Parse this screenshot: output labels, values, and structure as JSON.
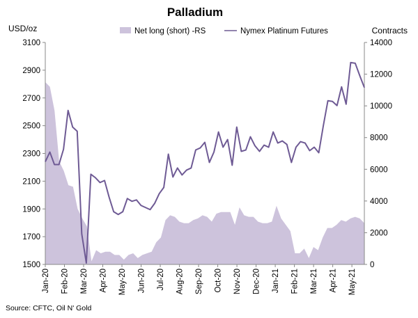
{
  "chart_data": {
    "type": "line",
    "title": "Palladium",
    "left_axis_unit": "USD/oz",
    "right_axis_unit": "Contracts",
    "source": "Source: CFTC, Oil N' Gold",
    "left_ylim": [
      1500,
      3100
    ],
    "left_yticks": [
      1500,
      1700,
      1900,
      2100,
      2300,
      2500,
      2700,
      2900,
      3100
    ],
    "right_ylim": [
      0,
      14000
    ],
    "right_yticks": [
      0,
      2000,
      4000,
      6000,
      8000,
      10000,
      12000,
      14000
    ],
    "x_tick_labels": [
      "Jan-20",
      "Feb-20",
      "Mar-20",
      "Apr-20",
      "May-20",
      "Jun-20",
      "Jul-20",
      "Aug-20",
      "Sep-20",
      "Oct-20",
      "Nov-20",
      "Dec-20",
      "Jan-21",
      "Feb-21",
      "Mar-21",
      "Apr-21",
      "May-21"
    ],
    "legend": [
      {
        "name": "Net long (short) -RS",
        "kind": "area",
        "color": "#cdc3dc"
      },
      {
        "name": "Nymex Platinum Futures",
        "kind": "line",
        "color": "#6e5a94"
      }
    ],
    "series": [
      {
        "name": "Net long (short) -RS",
        "axis": "right",
        "values": [
          11500,
          11200,
          9700,
          6500,
          5900,
          5000,
          4900,
          3500,
          2900,
          2400,
          200,
          900,
          700,
          800,
          800,
          600,
          600,
          300,
          600,
          700,
          400,
          600,
          700,
          800,
          1400,
          1700,
          2800,
          3100,
          3000,
          2700,
          2600,
          2600,
          2800,
          2900,
          3100,
          3000,
          2700,
          3200,
          3300,
          3300,
          3300,
          2500,
          3600,
          3100,
          3000,
          3000,
          2700,
          2600,
          2600,
          2700,
          3700,
          2900,
          2500,
          2100,
          700,
          700,
          1000,
          400,
          1100,
          900,
          1700,
          2300,
          2300,
          2500,
          2800,
          2700,
          2900,
          3000,
          2900,
          2600
        ]
      },
      {
        "name": "Nymex Platinum Futures",
        "axis": "left",
        "values": [
          2240,
          2310,
          2220,
          2220,
          2330,
          2610,
          2490,
          2460,
          1720,
          1510,
          2150,
          2125,
          2090,
          2105,
          1985,
          1880,
          1860,
          1880,
          1975,
          1955,
          1965,
          1925,
          1910,
          1895,
          1940,
          2010,
          2055,
          2295,
          2130,
          2195,
          2145,
          2180,
          2195,
          2325,
          2340,
          2380,
          2235,
          2310,
          2455,
          2345,
          2400,
          2215,
          2490,
          2315,
          2325,
          2420,
          2355,
          2315,
          2360,
          2345,
          2455,
          2375,
          2390,
          2365,
          2235,
          2345,
          2385,
          2375,
          2320,
          2345,
          2305,
          2500,
          2680,
          2675,
          2645,
          2780,
          2655,
          2955,
          2950,
          2860,
          2775
        ]
      }
    ]
  }
}
